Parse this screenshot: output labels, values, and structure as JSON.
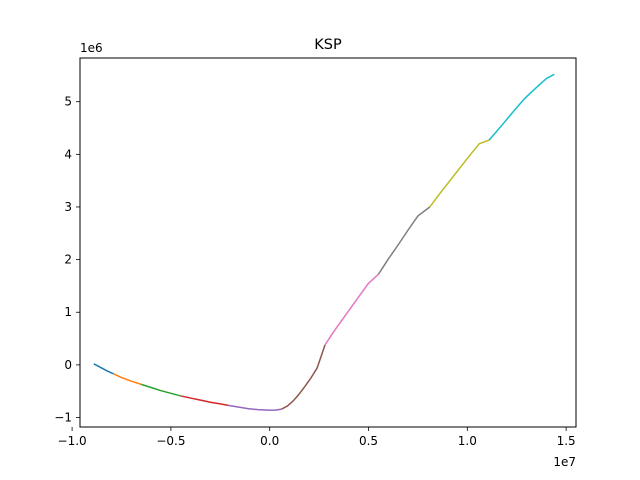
{
  "chart_data": {
    "type": "line",
    "title": "KSP",
    "xlabel": "",
    "ylabel": "",
    "x_scale_label": "1e7",
    "y_scale_label": "1e6",
    "xlim": [
      -9.6,
      15.5
    ],
    "ylim": [
      -1.18,
      5.83
    ],
    "x_ticks": [
      -1.0,
      -0.5,
      0.0,
      0.5,
      1.0,
      1.5
    ],
    "x_tick_labels": [
      "−1.0",
      "−0.5",
      "0.0",
      "0.5",
      "1.0",
      "1.5"
    ],
    "y_ticks": [
      -1,
      0,
      1,
      2,
      3,
      4,
      5
    ],
    "y_tick_labels": [
      "−1",
      "0",
      "1",
      "2",
      "3",
      "4",
      "5"
    ],
    "grid": false,
    "legend": "none",
    "series": [
      {
        "color": "#1f77b4",
        "x": [
          -8.9,
          -8.5,
          -8.2,
          -7.9
        ],
        "y": [
          0.02,
          -0.06,
          -0.12,
          -0.17
        ]
      },
      {
        "color": "#ff7f0e",
        "x": [
          -7.9,
          -7.5,
          -7.0,
          -6.5
        ],
        "y": [
          -0.17,
          -0.24,
          -0.31,
          -0.37
        ]
      },
      {
        "color": "#2ca02c",
        "x": [
          -6.5,
          -6.0,
          -5.5,
          -5.0,
          -4.5
        ],
        "y": [
          -0.37,
          -0.43,
          -0.49,
          -0.54,
          -0.59
        ]
      },
      {
        "color": "#d62728",
        "x": [
          -4.5,
          -4.0,
          -3.5,
          -3.0,
          -2.5,
          -2.1
        ],
        "y": [
          -0.59,
          -0.63,
          -0.67,
          -0.71,
          -0.74,
          -0.77
        ]
      },
      {
        "color": "#9467bd",
        "x": [
          -2.1,
          -1.6,
          -1.1,
          -0.6,
          -0.1,
          0.3,
          0.6
        ],
        "y": [
          -0.77,
          -0.8,
          -0.83,
          -0.85,
          -0.86,
          -0.86,
          -0.84
        ]
      },
      {
        "color": "#8c564b",
        "x": [
          0.6,
          0.9,
          1.2,
          1.5,
          1.8,
          2.1,
          2.4,
          2.8
        ],
        "y": [
          -0.84,
          -0.78,
          -0.68,
          -0.55,
          -0.4,
          -0.24,
          -0.06,
          0.38
        ]
      },
      {
        "color": "#e377c2",
        "x": [
          2.8,
          3.2,
          3.6,
          4.0,
          4.5,
          5.0,
          5.5
        ],
        "y": [
          0.38,
          0.61,
          0.82,
          1.03,
          1.29,
          1.55,
          1.72
        ]
      },
      {
        "color": "#7f7f7f",
        "x": [
          5.5,
          6.0,
          6.5,
          7.0,
          7.5,
          8.1
        ],
        "y": [
          1.72,
          2.01,
          2.28,
          2.56,
          2.83,
          3.0
        ]
      },
      {
        "color": "#bcbd22",
        "x": [
          8.1,
          8.6,
          9.1,
          9.6,
          10.1,
          10.6,
          11.1
        ],
        "y": [
          3.0,
          3.25,
          3.49,
          3.73,
          3.97,
          4.2,
          4.27
        ]
      },
      {
        "color": "#17becf",
        "x": [
          11.1,
          11.7,
          12.3,
          12.9,
          13.5,
          14.0,
          14.4
        ],
        "y": [
          4.27,
          4.53,
          4.8,
          5.06,
          5.27,
          5.44,
          5.52
        ]
      }
    ]
  }
}
